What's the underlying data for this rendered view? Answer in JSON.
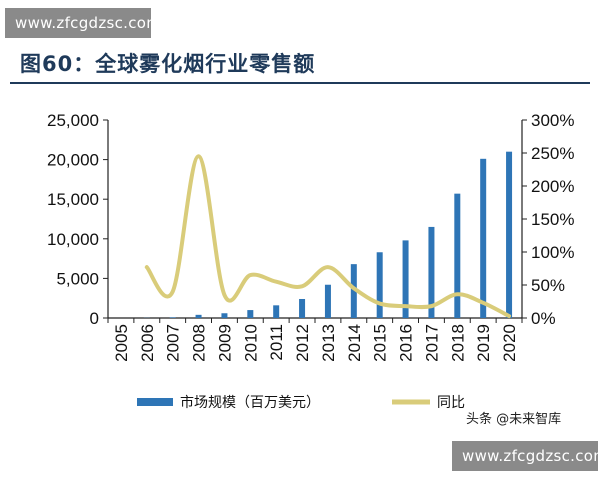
{
  "watermark_top": "www.zfcgdzsc.com",
  "watermark_bottom": "www.zfcgdzsc.com",
  "figure_title": "图60：全球雾化烟行业零售额",
  "credit": "头条 @未来智库",
  "colors": {
    "bar": "#2e75b6",
    "line": "#d9cc7a",
    "title": "#1f3a5a"
  },
  "chart_data": {
    "type": "bar",
    "categories": [
      "2005",
      "2006",
      "2007",
      "2008",
      "2009",
      "2010",
      "2011",
      "2012",
      "2013",
      "2014",
      "2015",
      "2016",
      "2017",
      "2018",
      "2019",
      "2020"
    ],
    "left_axis": {
      "min": 0,
      "max": 25000,
      "ticks": [
        "0",
        "5,000",
        "10,000",
        "15,000",
        "20,000",
        "25,000"
      ],
      "tick_values": [
        0,
        5000,
        10000,
        15000,
        20000,
        25000
      ]
    },
    "right_axis": {
      "min": 0,
      "max": 300,
      "ticks": [
        "0%",
        "50%",
        "100%",
        "150%",
        "200%",
        "250%",
        "300%"
      ],
      "tick_values": [
        0,
        50,
        100,
        150,
        200,
        250,
        300
      ]
    },
    "series": [
      {
        "name": "市场规模（百万美元）",
        "kind": "bar",
        "axis": "left",
        "values": [
          0,
          20,
          80,
          400,
          600,
          1000,
          1600,
          2400,
          4200,
          6800,
          8300,
          9800,
          11500,
          15700,
          20100,
          21000
        ]
      },
      {
        "name": "同比",
        "kind": "line",
        "axis": "right",
        "values": [
          null,
          77,
          40,
          245,
          35,
          65,
          55,
          48,
          77,
          45,
          22,
          18,
          18,
          36,
          23,
          3
        ]
      }
    ]
  }
}
